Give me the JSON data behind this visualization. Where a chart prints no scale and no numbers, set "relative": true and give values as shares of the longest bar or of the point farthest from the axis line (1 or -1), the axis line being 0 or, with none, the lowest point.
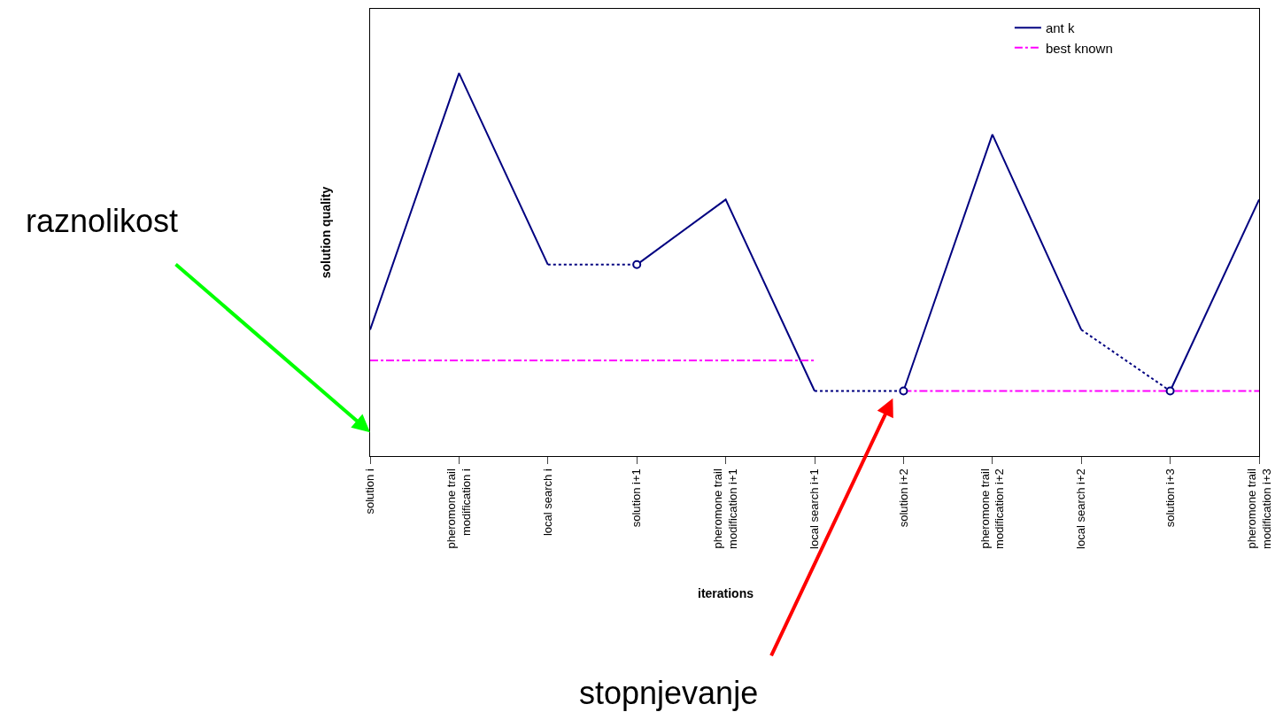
{
  "chart_data": {
    "type": "line",
    "relative": true,
    "xlabel": "iterations",
    "ylabel": "solution quality",
    "categories": [
      "solution i",
      "pheromone trail modification i",
      "local search i",
      "solution i+1",
      "pheromone trail modification i+1",
      "local search i+1",
      "solution i+2",
      "pheromone trail modification i+2",
      "local search i+2",
      "solution i+3",
      "pheromone trail modification i+3"
    ],
    "series": [
      {
        "name": "ant k",
        "color": "#000080",
        "line_style": "solid",
        "values": [
          0.33,
          1,
          0.5,
          null,
          null,
          null,
          null,
          null,
          null,
          null,
          null
        ]
      },
      {
        "color": "#000080",
        "line_style": "solid",
        "values": [
          null,
          null,
          null,
          0.5,
          0.67,
          0.17,
          null,
          null,
          null,
          null,
          null
        ]
      },
      {
        "color": "#000080",
        "line_style": "solid",
        "values": [
          null,
          null,
          null,
          null,
          null,
          null,
          0.17,
          0.84,
          0.33,
          null,
          null
        ]
      },
      {
        "color": "#000080",
        "line_style": "solid",
        "values": [
          null,
          null,
          null,
          null,
          null,
          null,
          null,
          null,
          null,
          0.17,
          0.67
        ]
      },
      {
        "color": "#000080",
        "line_style": "dotted",
        "values": [
          null,
          null,
          0.5,
          0.5,
          null,
          null,
          null,
          null,
          null,
          null,
          null
        ]
      },
      {
        "color": "#000080",
        "line_style": "dotted",
        "values": [
          null,
          null,
          null,
          null,
          null,
          0.17,
          0.17,
          null,
          null,
          null,
          null
        ]
      },
      {
        "color": "#000080",
        "line_style": "dotted",
        "values": [
          null,
          null,
          null,
          null,
          null,
          null,
          null,
          null,
          0.33,
          0.17,
          null
        ]
      },
      {
        "name": "best known",
        "color": "#ff00ff",
        "line_style": "dashdot",
        "values": [
          0.25,
          0.25,
          0.25,
          0.25,
          0.25,
          0.25,
          null,
          null,
          null,
          null,
          null
        ]
      },
      {
        "color": "#ff00ff",
        "line_style": "dashdot",
        "values": [
          null,
          null,
          null,
          null,
          null,
          null,
          0.17,
          0.17,
          0.17,
          0.17,
          0.17
        ]
      },
      {
        "type": "scatter",
        "color": "#000080",
        "marker": "circle",
        "values": [
          null,
          null,
          null,
          0.5,
          null,
          null,
          0.17,
          null,
          null,
          0.17,
          null
        ]
      }
    ],
    "annotations": [
      "raznolikost",
      "stopnjevanje"
    ],
    "legend": "top right"
  }
}
